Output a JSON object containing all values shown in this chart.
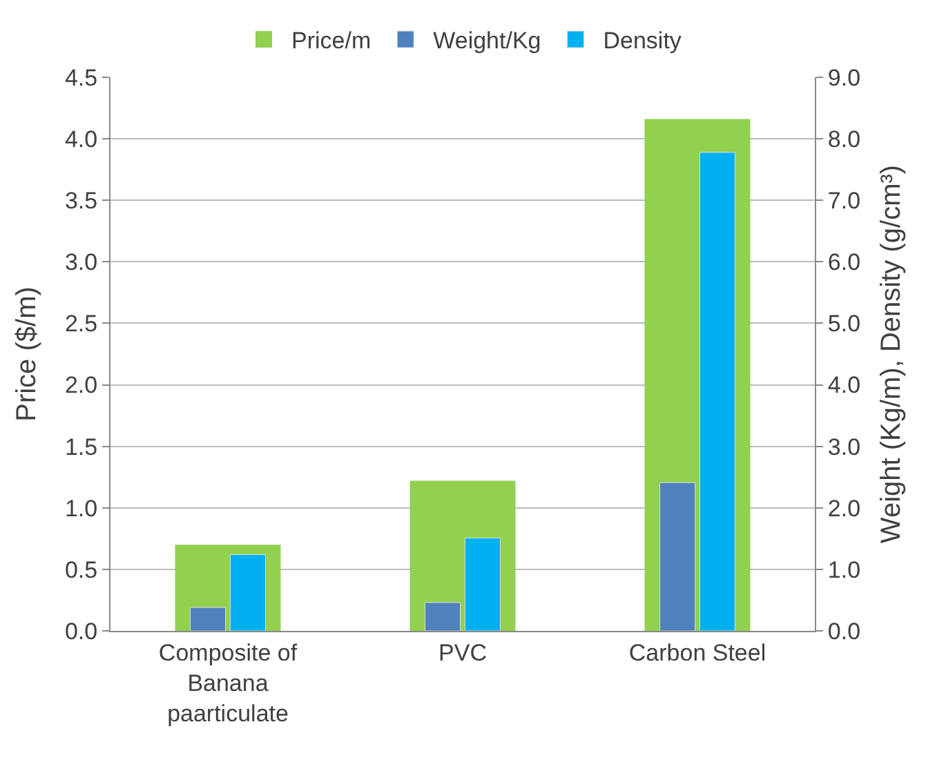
{
  "chart_data": {
    "type": "bar",
    "categories": [
      "Composite of Banana paarticulate",
      "PVC",
      "Carbon Steel"
    ],
    "series": [
      {
        "name": "Price/m",
        "color": "#92d050",
        "values": [
          0.7,
          1.22,
          4.16
        ]
      },
      {
        "name": "Weight/Kg",
        "color": "#4f81bd",
        "values": [
          0.38,
          0.46,
          2.41
        ],
        "axis": "y2"
      },
      {
        "name": "Density",
        "color": "#00b0f0",
        "values": [
          1.24,
          1.51,
          7.78
        ],
        "axis": "y2"
      }
    ],
    "ylabel": "Price ($/m)",
    "y2label": "Weight (Kg/m), Density (g/cm³)",
    "ylim": [
      0,
      4.5
    ],
    "yticks": [
      {
        "value": 0,
        "label": "0.0"
      },
      0.5,
      {
        "value": 1,
        "label": "1.0"
      },
      1.5,
      {
        "value": 2,
        "label": "2.0"
      },
      2.5,
      {
        "value": 3,
        "label": "3.0"
      },
      3.5,
      {
        "value": 4,
        "label": "4.0"
      },
      4.5
    ],
    "y2lim": [
      0,
      9
    ],
    "y2ticks": [
      {
        "value": 0,
        "label": "0.0"
      },
      {
        "value": 1,
        "label": "1.0"
      },
      {
        "value": 2,
        "label": "2.0"
      },
      {
        "value": 3,
        "label": "3.0"
      },
      {
        "value": 4,
        "label": "4.0"
      },
      {
        "value": 5,
        "label": "5.0"
      },
      {
        "value": 6,
        "label": "6.0"
      },
      {
        "value": 7,
        "label": "7.0"
      },
      {
        "value": 8,
        "label": "8.0"
      },
      {
        "value": 9,
        "label": "9.0"
      }
    ],
    "grid": "y",
    "legend": "top"
  }
}
